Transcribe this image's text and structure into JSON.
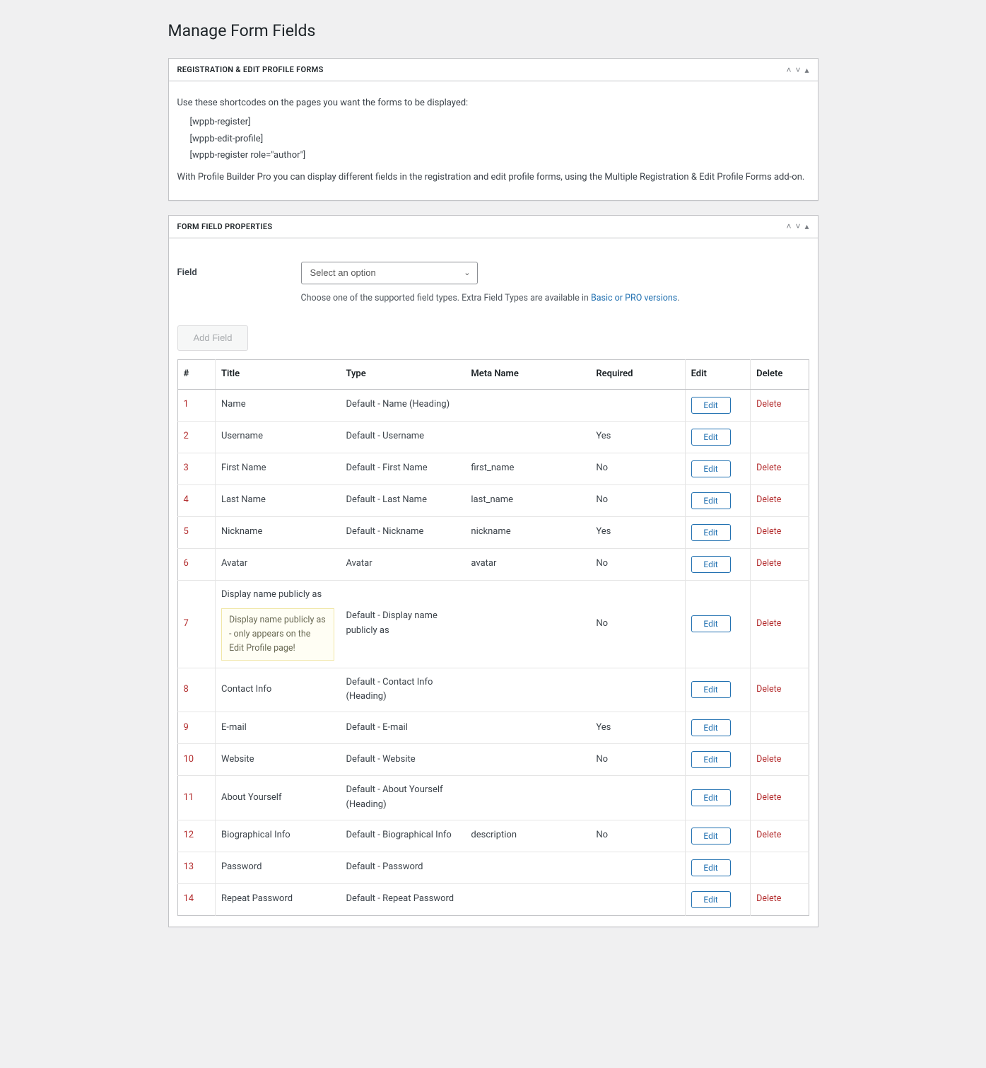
{
  "page": {
    "title": "Manage Form Fields"
  },
  "panel1": {
    "heading": "REGISTRATION & EDIT PROFILE FORMS",
    "intro": "Use these shortcodes on the pages you want the forms to be displayed:",
    "shortcodes": [
      "[wppb-register]",
      "[wppb-edit-profile]",
      "[wppb-register role=\"author\"]"
    ],
    "footer": "With Profile Builder Pro you can display different fields in the registration and edit profile forms, using the Multiple Registration & Edit Profile Forms add-on."
  },
  "panel2": {
    "heading": "FORM FIELD PROPERTIES",
    "field_label": "Field",
    "select_placeholder": "Select an option",
    "helper_pre": "Choose one of the supported field types. Extra Field Types are available in ",
    "helper_link": "Basic or PRO versions",
    "helper_post": ".",
    "add_field_label": "Add Field",
    "edit_label": "Edit",
    "delete_label": "Delete",
    "columns": {
      "num": "#",
      "title": "Title",
      "type": "Type",
      "meta": "Meta Name",
      "required": "Required",
      "edit": "Edit",
      "delete": "Delete"
    },
    "rows": [
      {
        "n": "1",
        "title": "Name",
        "type": "Default - Name (Heading)",
        "meta": "",
        "req": "",
        "del": true
      },
      {
        "n": "2",
        "title": "Username",
        "type": "Default - Username",
        "meta": "",
        "req": "Yes",
        "del": false
      },
      {
        "n": "3",
        "title": "First Name",
        "type": "Default - First Name",
        "meta": "first_name",
        "req": "No",
        "del": true
      },
      {
        "n": "4",
        "title": "Last Name",
        "type": "Default - Last Name",
        "meta": "last_name",
        "req": "No",
        "del": true
      },
      {
        "n": "5",
        "title": "Nickname",
        "type": "Default - Nickname",
        "meta": "nickname",
        "req": "Yes",
        "del": true
      },
      {
        "n": "6",
        "title": "Avatar",
        "type": "Avatar",
        "meta": "avatar",
        "req": "No",
        "del": true
      },
      {
        "n": "7",
        "title": "Display name publicly as",
        "type": "Default - Display name publicly as",
        "meta": "",
        "req": "No",
        "del": true,
        "notice": "Display name publicly as - only appears on the Edit Profile page!"
      },
      {
        "n": "8",
        "title": "Contact Info",
        "type": "Default - Contact Info (Heading)",
        "meta": "",
        "req": "",
        "del": true
      },
      {
        "n": "9",
        "title": "E-mail",
        "type": "Default - E-mail",
        "meta": "",
        "req": "Yes",
        "del": false
      },
      {
        "n": "10",
        "title": "Website",
        "type": "Default - Website",
        "meta": "",
        "req": "No",
        "del": true
      },
      {
        "n": "11",
        "title": "About Yourself",
        "type": "Default - About Yourself (Heading)",
        "meta": "",
        "req": "",
        "del": true
      },
      {
        "n": "12",
        "title": "Biographical Info",
        "type": "Default - Biographical Info",
        "meta": "description",
        "req": "No",
        "del": true
      },
      {
        "n": "13",
        "title": "Password",
        "type": "Default - Password",
        "meta": "",
        "req": "",
        "del": false
      },
      {
        "n": "14",
        "title": "Repeat Password",
        "type": "Default - Repeat Password",
        "meta": "",
        "req": "",
        "del": true
      }
    ]
  },
  "colors": {
    "link": "#2271b1",
    "danger": "#b32d2e",
    "border": "#c3c4c7"
  }
}
